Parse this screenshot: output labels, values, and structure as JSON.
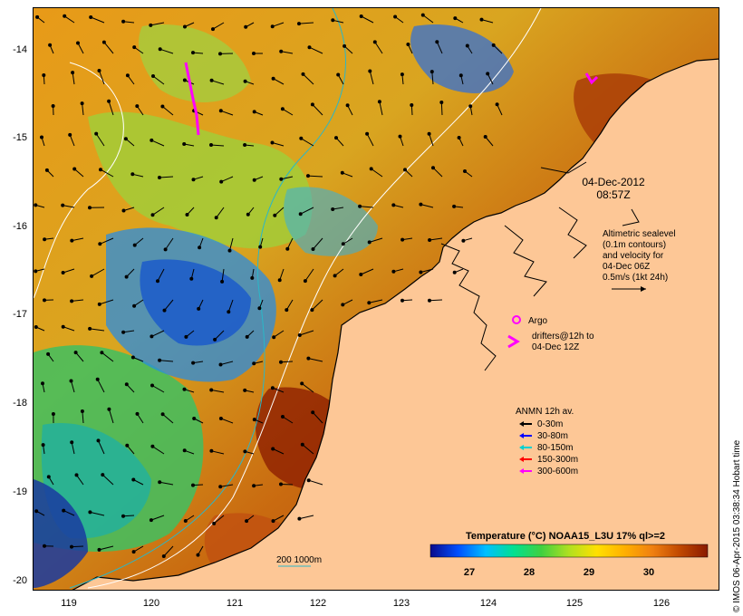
{
  "timestamp": {
    "date": "04-Dec-2012",
    "time": "08:57Z"
  },
  "sealevel_note": [
    "Altimetric sealevel",
    "(0.1m contours)",
    "and velocity for",
    "04-Dec 06Z",
    "0.5m/s (1kt 24h)"
  ],
  "argo_label": "Argo",
  "drifter_note": [
    "drifters@12h to",
    "04-Dec 12Z"
  ],
  "anmn": {
    "title": "ANMN 12h av.",
    "items": [
      {
        "label": "0-30m",
        "color": "#000000"
      },
      {
        "label": "30-80m",
        "color": "#0000ff"
      },
      {
        "label": "80-150m",
        "color": "#00d0d0"
      },
      {
        "label": "150-300m",
        "color": "#ff0000"
      },
      {
        "label": "300-600m",
        "color": "#ff00ff"
      }
    ]
  },
  "colorbar": {
    "title": "Temperature (°C) NOAA15_L3U 17% ql>=2",
    "ticks": [
      "27",
      "28",
      "29",
      "30"
    ],
    "colors": [
      "#0a0a8c",
      "#0050ff",
      "#00c0ff",
      "#00e090",
      "#40d040",
      "#b0e020",
      "#ffe000",
      "#ffb000",
      "#f08010",
      "#c04800",
      "#8a1a00"
    ]
  },
  "depth_legend": {
    "label": "200  1000m"
  },
  "yaxis_labels": [
    "-14",
    "-15",
    "-16",
    "-17",
    "-18",
    "-19",
    "-20"
  ],
  "xaxis_labels": [
    "119",
    "120",
    "121",
    "122",
    "123",
    "124",
    "125",
    "126"
  ],
  "credit": "© IMOS 06-Apr-2015 03:38:34 Hobart time",
  "colors": {
    "land": "#fdc796",
    "coast": "#000000",
    "drifter": "#ff00ff"
  }
}
